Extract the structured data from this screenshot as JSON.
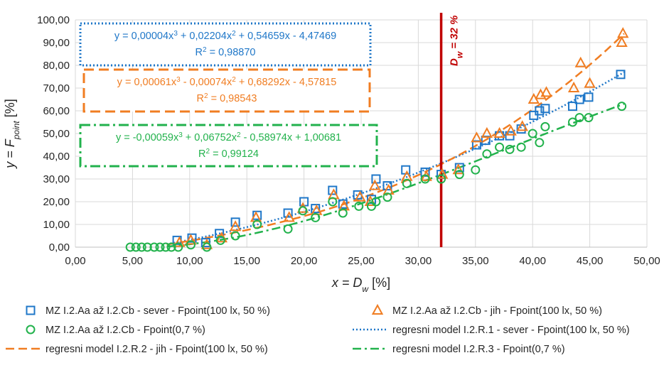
{
  "chart_data": {
    "type": "scatter",
    "xlabel": {
      "pre": "x = D",
      "sub": "w",
      "post": " [%]"
    },
    "ylabel": {
      "pre": "y = F",
      "sub": "point",
      "post": " [%]"
    },
    "xlim": [
      0,
      50
    ],
    "ylim": [
      0,
      100
    ],
    "x_ticks": [
      "0,00",
      "5,00",
      "10,00",
      "15,00",
      "20,00",
      "25,00",
      "30,00",
      "35,00",
      "40,00",
      "45,00",
      "50,00"
    ],
    "y_ticks": [
      "0,00",
      "10,00",
      "20,00",
      "30,00",
      "40,00",
      "50,00",
      "60,00",
      "70,00",
      "80,00",
      "90,00",
      "100,00"
    ],
    "grid": true,
    "legend_position": "bottom",
    "colors": {
      "blue": "#1f77c8",
      "orange": "#f07d22",
      "green": "#22b24c",
      "red": "#c00000"
    },
    "vline": {
      "x": 32,
      "label_pre": "D",
      "label_sub": "w",
      "label_post": " = 32 %",
      "color": "#c00000"
    },
    "series": [
      {
        "name": "MZ I.2.Aa až I.2.Cb - sever - Fpoint(100 lx, 50 %)",
        "marker": "square",
        "color": "#1f77c8",
        "x": [
          8.9,
          10.2,
          11.4,
          12.6,
          14.0,
          15.9,
          18.6,
          20.0,
          21.0,
          22.5,
          23.4,
          24.7,
          25.9,
          26.3,
          27.3,
          28.9,
          30.6,
          32.0,
          33.6,
          35.1,
          35.9,
          37.1,
          38.0,
          39.0,
          40.1,
          40.6,
          41.1,
          43.5,
          44.1,
          44.9,
          47.7
        ],
        "y": [
          3.0,
          4.0,
          2.0,
          6.0,
          11.0,
          14.0,
          15.0,
          20.0,
          17.0,
          25.0,
          19.0,
          23.0,
          21.0,
          30.0,
          27.0,
          34.0,
          33.0,
          32.0,
          35.0,
          45.0,
          47.0,
          49.0,
          49.0,
          52.0,
          58.0,
          60.0,
          61.0,
          62.0,
          65.0,
          66.0,
          76.0
        ]
      },
      {
        "name": "MZ I.2.Aa až I.2.Cb - jih - Fpoint(100 lx, 50 %)",
        "marker": "triangle",
        "color": "#f07d22",
        "x": [
          9.1,
          10.1,
          11.5,
          12.8,
          14.0,
          15.8,
          18.7,
          19.9,
          21.1,
          22.6,
          23.5,
          24.9,
          25.8,
          26.2,
          27.4,
          29.0,
          30.7,
          32.1,
          33.5,
          35.1,
          36.0,
          37.1,
          38.1,
          39.1,
          40.1,
          40.7,
          41.2,
          43.6,
          44.2,
          45.0,
          47.8,
          47.9
        ],
        "y": [
          2.0,
          3.0,
          1.0,
          4.0,
          9.0,
          13.0,
          13.0,
          17.0,
          16.0,
          23.0,
          18.0,
          22.0,
          20.0,
          27.0,
          25.0,
          31.0,
          31.0,
          32.0,
          34.0,
          48.0,
          50.0,
          50.0,
          51.0,
          53.0,
          65.0,
          67.0,
          68.0,
          70.0,
          81.0,
          72.0,
          90.0,
          94.0
        ]
      },
      {
        "name": "MZ I.2.Aa až I.2.Cb - Fpoint(0,7 %)",
        "marker": "circle",
        "color": "#22b24c",
        "x": [
          4.8,
          5.3,
          5.8,
          6.3,
          6.9,
          7.4,
          7.9,
          8.4,
          9.0,
          10.1,
          11.5,
          12.7,
          14.0,
          15.9,
          18.6,
          19.9,
          21.0,
          22.5,
          23.4,
          24.8,
          25.9,
          26.3,
          27.3,
          29.0,
          30.6,
          32.0,
          33.6,
          35.0,
          36.0,
          37.1,
          38.0,
          39.0,
          40.0,
          40.6,
          41.1,
          43.5,
          44.1,
          44.9,
          47.8
        ],
        "y": [
          0,
          0,
          0,
          0,
          0,
          0,
          0,
          0,
          0,
          1.0,
          0,
          3.0,
          5.0,
          10.0,
          8.0,
          16.0,
          13.0,
          20.0,
          15.0,
          18.0,
          18.0,
          20.0,
          22.0,
          28.0,
          30.0,
          30.0,
          32.0,
          34.0,
          41.0,
          44.0,
          43.0,
          44.0,
          50.0,
          46.0,
          53.0,
          55.0,
          57.0,
          57.0,
          62.0
        ]
      }
    ],
    "models": [
      {
        "name": "regresni model I.2.R.1 - sever - Fpoint(100 lx, 50 %)",
        "color": "#1f77c8",
        "dash": "2 3",
        "coef": [
          4e-05,
          0.02204,
          0.54659,
          -4.47469
        ],
        "from": 8,
        "to": 48
      },
      {
        "name": "regresni model I.2.R.2 - jih - Fpoint(100 lx, 50 %)",
        "color": "#f07d22",
        "dash": "12 6",
        "coef": [
          0.00061,
          -0.00074,
          0.68292,
          -4.57815
        ],
        "from": 8,
        "to": 48
      },
      {
        "name": "regresni model I.2.R.3 - Fpoint(0,7 %)",
        "color": "#22b24c",
        "dash": "12 5 3 5",
        "coef": [
          -0.00059,
          0.06752,
          -0.58974,
          1.00681
        ],
        "from": 8,
        "to": 48
      }
    ],
    "equations": [
      {
        "color": "#1f77c8",
        "dash": "2 3",
        "line1": [
          "y = 0,00004x",
          "3",
          " + 0,02204x",
          "2",
          " + 0,54659x - 4,47469"
        ],
        "line2": [
          "R",
          "2",
          " = 0,98870"
        ]
      },
      {
        "color": "#f07d22",
        "dash": "14 7",
        "line1": [
          "y = 0,00061x",
          "3",
          " - 0,00074x",
          "2",
          " + 0,68292x - 4,57815"
        ],
        "line2": [
          "R",
          "2",
          " = 0,98543"
        ]
      },
      {
        "color": "#22b24c",
        "dash": "14 5 3 5",
        "line1": [
          "y = -0,00059x",
          "3",
          " + 0,06752x",
          "2",
          " - 0,58974x + 1,00681"
        ],
        "line2": [
          "R",
          "2",
          " = 0,99124"
        ]
      }
    ]
  }
}
